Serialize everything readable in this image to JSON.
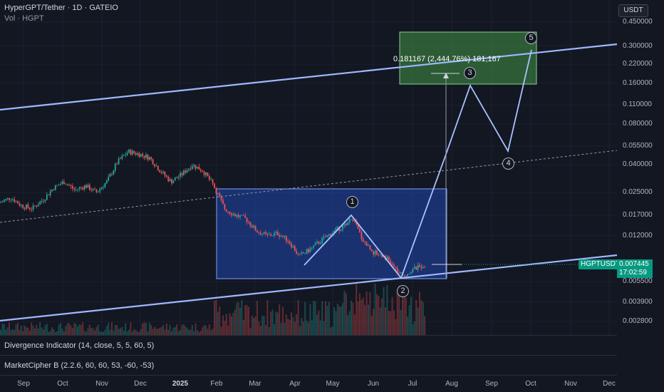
{
  "header": {
    "title": "HyperGPT/Tether · 1D · GATEIO",
    "volume_label": "Vol · HGPT"
  },
  "currency": "USDT",
  "indicators": [
    "Divergence Indicator (14, close, 5, 5, 60, 5)",
    "MarketCipher B (2.2.6, 60, 60, 53, -60, -53)"
  ],
  "ticker_tag": "HGPTUSDT",
  "last_price": "0.007445",
  "countdown": "17:02:59",
  "annotation": "0.181167 (2,444.76%) 181,167",
  "wave_labels": [
    "1",
    "2",
    "3",
    "4",
    "5"
  ],
  "chart_data": {
    "type": "candlestick",
    "scale": "log",
    "price_ticks": [
      "0.450000",
      "0.300000",
      "0.220000",
      "0.160000",
      "0.110000",
      "0.080000",
      "0.055000",
      "0.040000",
      "0.025000",
      "0.017000",
      "0.012000",
      "0.005500",
      "0.003900",
      "0.002800"
    ],
    "time_ticks": [
      "Sep",
      "Oct",
      "Nov",
      "Dec",
      "2025",
      "Feb",
      "Mar",
      "Apr",
      "May",
      "Jun",
      "Jul",
      "Aug",
      "Sep",
      "Oct",
      "Nov",
      "Dec"
    ],
    "series": [
      {
        "name": "HGPTUSDT",
        "last": 0.007445,
        "close_path": [
          [
            0,
            0.021
          ],
          [
            15,
            0.023
          ],
          [
            30,
            0.02
          ],
          [
            45,
            0.019
          ],
          [
            60,
            0.022
          ],
          [
            75,
            0.027
          ],
          [
            90,
            0.03
          ],
          [
            105,
            0.026
          ],
          [
            120,
            0.028
          ],
          [
            135,
            0.025
          ],
          [
            150,
            0.03
          ],
          [
            165,
            0.042
          ],
          [
            180,
            0.05
          ],
          [
            195,
            0.048
          ],
          [
            210,
            0.045
          ],
          [
            225,
            0.036
          ],
          [
            240,
            0.03
          ],
          [
            255,
            0.034
          ],
          [
            270,
            0.04
          ],
          [
            285,
            0.036
          ],
          [
            300,
            0.028
          ],
          [
            315,
            0.019
          ],
          [
            330,
            0.017
          ],
          [
            345,
            0.016
          ],
          [
            360,
            0.013
          ],
          [
            375,
            0.012
          ],
          [
            390,
            0.0125
          ],
          [
            405,
            0.011
          ],
          [
            420,
            0.0085
          ],
          [
            435,
            0.0095
          ],
          [
            450,
            0.011
          ],
          [
            465,
            0.0125
          ],
          [
            480,
            0.014
          ],
          [
            495,
            0.016
          ],
          [
            510,
            0.011
          ],
          [
            525,
            0.009
          ],
          [
            540,
            0.0085
          ],
          [
            555,
            0.0068
          ],
          [
            565,
            0.006
          ],
          [
            580,
            0.0068
          ],
          [
            600,
            0.007445
          ]
        ]
      }
    ],
    "projection": {
      "waves": [
        {
          "label": "1",
          "price": 0.0163
        },
        {
          "label": "2",
          "price": 0.0054
        },
        {
          "label": "3",
          "price": 0.16
        },
        {
          "label": "4",
          "price": 0.047
        },
        {
          "label": "5",
          "price": 0.3
        }
      ],
      "target_zone": [
        0.155,
        0.45
      ],
      "measured_move": "0.181167 (2,444.76%) 181,167"
    }
  }
}
